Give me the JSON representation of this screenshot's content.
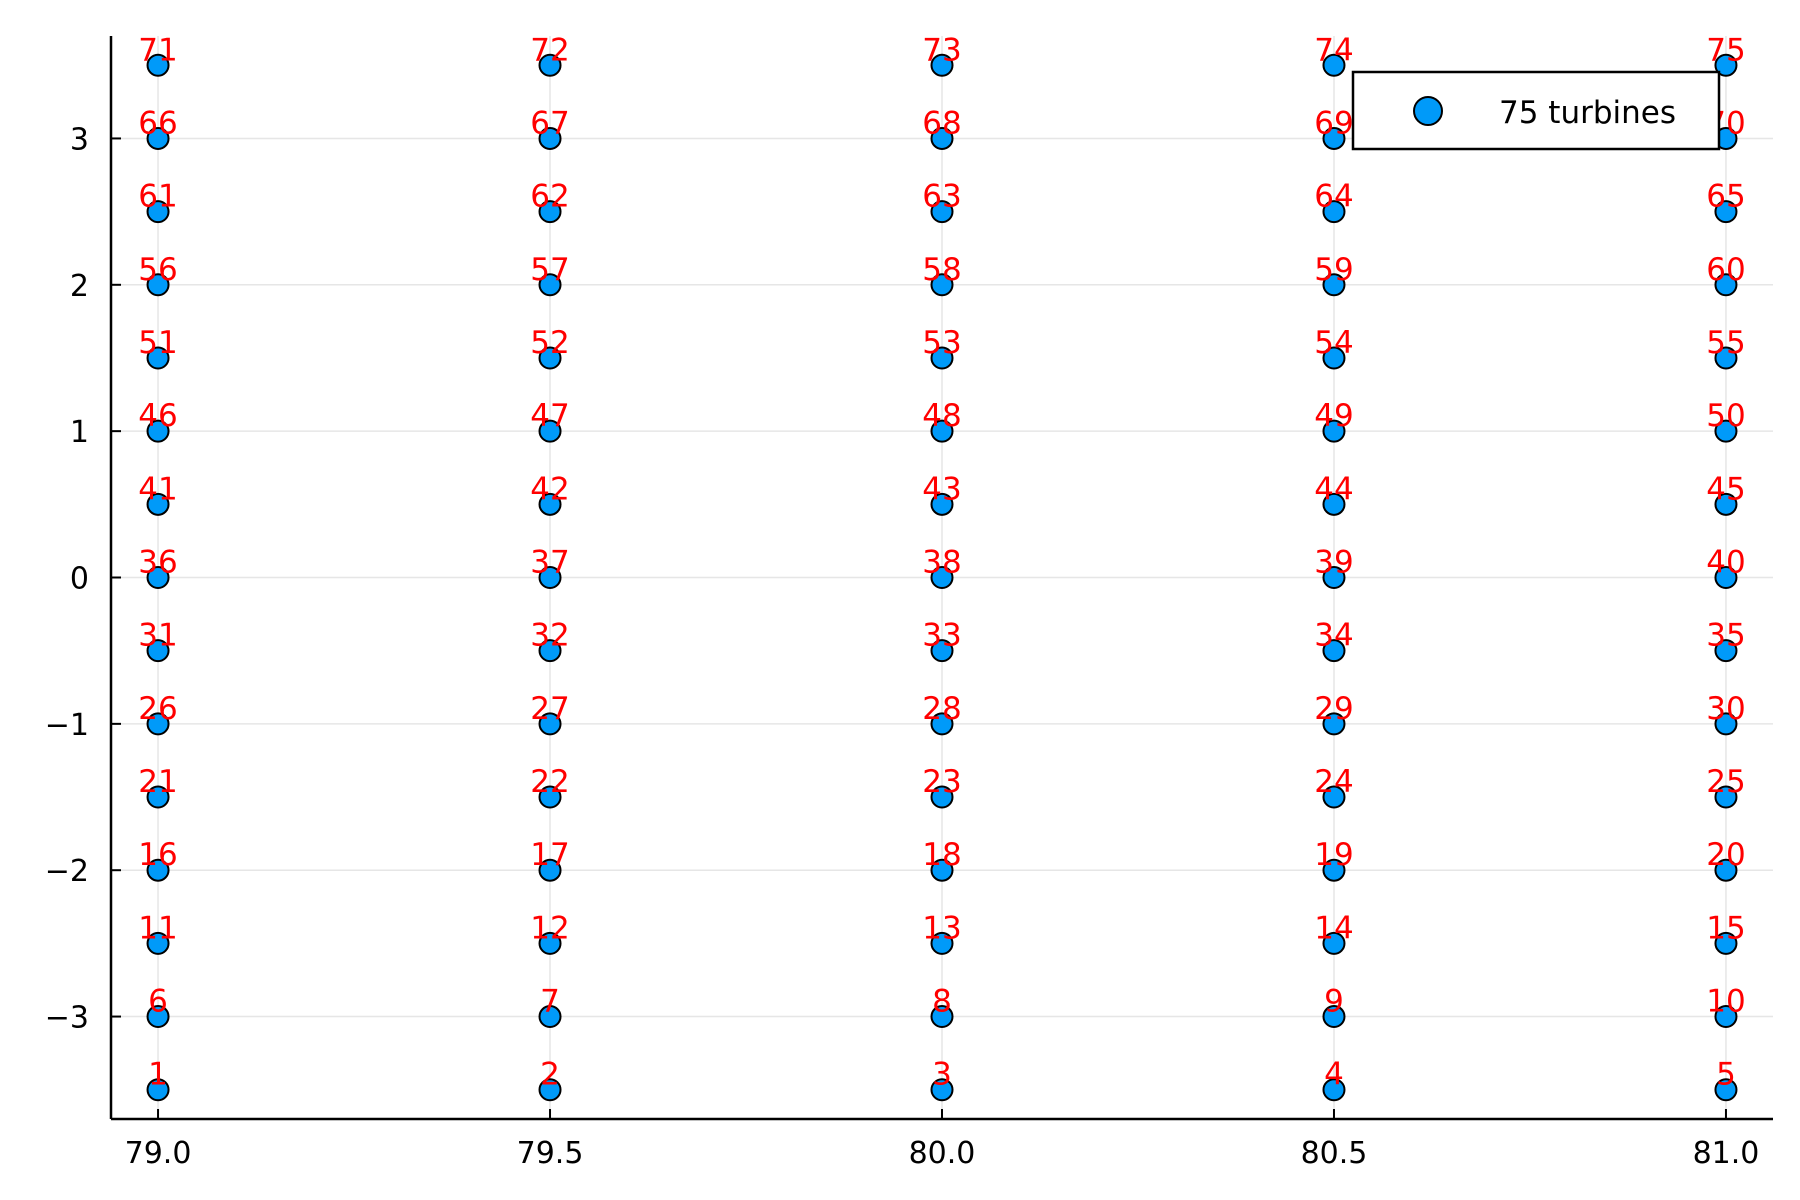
{
  "chart_data": {
    "type": "scatter",
    "title": "",
    "xlabel": "",
    "ylabel": "",
    "xlim": [
      78.94,
      81.06
    ],
    "ylim": [
      -3.7,
      3.7
    ],
    "x_ticks": [
      "79.0",
      "79.5",
      "80.0",
      "80.5",
      "81.0"
    ],
    "x_tick_values": [
      79.0,
      79.5,
      80.0,
      80.5,
      81.0
    ],
    "y_ticks": [
      "−3",
      "−2",
      "−1",
      "0",
      "1",
      "2",
      "3"
    ],
    "y_tick_values": [
      -3,
      -2,
      -1,
      0,
      1,
      2,
      3
    ],
    "grid": true,
    "legend": {
      "placement": "top-right",
      "entries": [
        "75 turbines"
      ]
    },
    "marker_color": "#009af9",
    "label_color": "#ff0000",
    "series": [
      {
        "name": "75 turbines",
        "columns_x": [
          79.0,
          79.5,
          80.0,
          80.5,
          81.0
        ],
        "rows_y": [
          -3.5,
          -3.0,
          -2.5,
          -2.0,
          -1.5,
          -1.0,
          -0.5,
          0.0,
          0.5,
          1.0,
          1.5,
          2.0,
          2.5,
          3.0,
          3.5
        ],
        "point_labels": [
          "1",
          "2",
          "3",
          "4",
          "5",
          "6",
          "7",
          "8",
          "9",
          "10",
          "11",
          "12",
          "13",
          "14",
          "15",
          "16",
          "17",
          "18",
          "19",
          "20",
          "21",
          "22",
          "23",
          "24",
          "25",
          "26",
          "27",
          "28",
          "29",
          "30",
          "31",
          "32",
          "33",
          "34",
          "35",
          "36",
          "37",
          "38",
          "39",
          "40",
          "41",
          "42",
          "43",
          "44",
          "45",
          "46",
          "47",
          "48",
          "49",
          "50",
          "51",
          "52",
          "53",
          "54",
          "55",
          "56",
          "57",
          "58",
          "59",
          "60",
          "61",
          "62",
          "63",
          "64",
          "65",
          "66",
          "67",
          "68",
          "69",
          "70",
          "71",
          "72",
          "73",
          "74",
          "75"
        ]
      }
    ]
  }
}
